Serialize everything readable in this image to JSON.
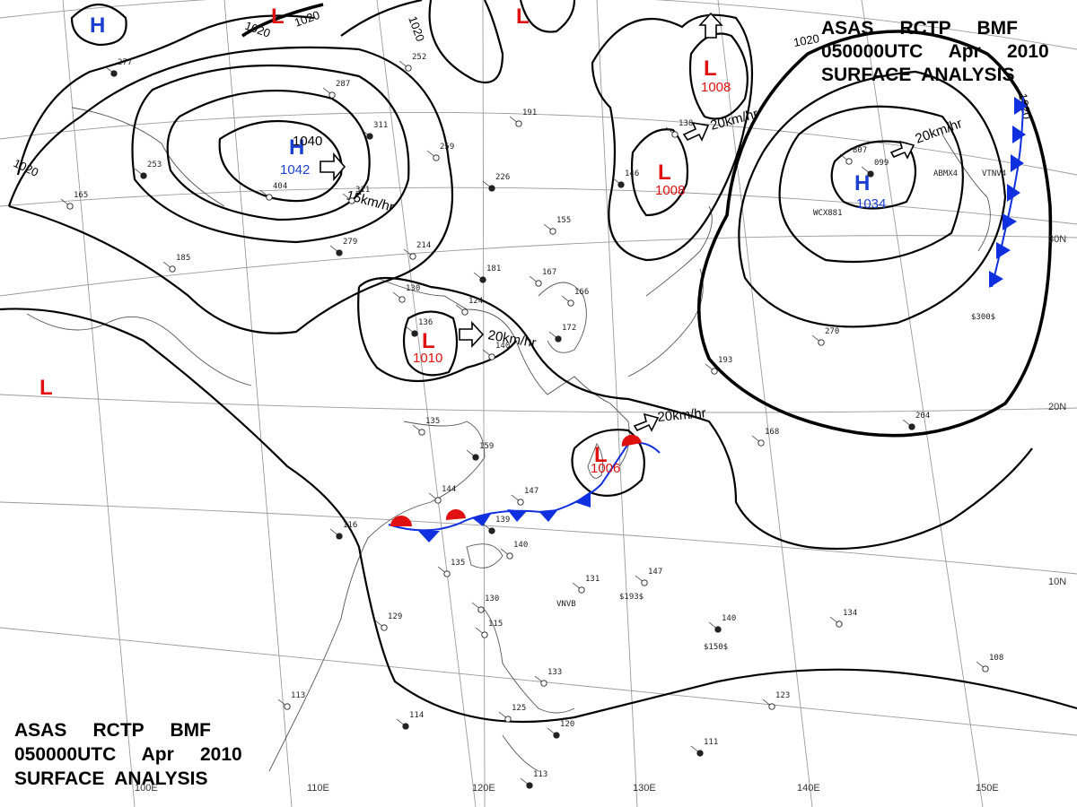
{
  "title_top": {
    "line1": "ASAS     RCTP     BMF",
    "line2": "050000UTC     Apr     2010",
    "line3": "SURFACE  ANALYSIS"
  },
  "title_bottom": {
    "line1": "ASAS     RCTP     BMF",
    "line2": "050000UTC     Apr     2010",
    "line3": "SURFACE  ANALYSIS"
  },
  "colors": {
    "high": "#1a3fd0",
    "low": "#e01010",
    "cold_front": "#1030e0",
    "warm_front": "#e01010"
  },
  "isobar_labels": [
    "1020",
    "1020",
    "1020",
    "1020",
    "1020",
    "1020"
  ],
  "longitude_labels": [
    "100E",
    "110E",
    "120E",
    "130E",
    "140E",
    "150E"
  ],
  "latitude_labels": [
    "30N",
    "20N",
    "10N"
  ],
  "pressure_centers": [
    {
      "type": "H",
      "value": "1042",
      "alt_value": "1040"
    },
    {
      "type": "H",
      "value": "1034"
    },
    {
      "type": "H",
      "value": ""
    },
    {
      "type": "L",
      "value": "1010"
    },
    {
      "type": "L",
      "value": "1008"
    },
    {
      "type": "L",
      "value": "1008"
    },
    {
      "type": "L",
      "value": "1006"
    },
    {
      "type": "L",
      "value": ""
    },
    {
      "type": "L",
      "value": ""
    },
    {
      "type": "L",
      "value": ""
    }
  ],
  "motion_labels": [
    "15km/hr",
    "20km/hr",
    "20km/hr",
    "20km/hr",
    "20km/hr"
  ],
  "station_plots": [
    "277",
    "287",
    "252",
    "311",
    "404",
    "311",
    "253",
    "165",
    "185",
    "279",
    "214",
    "259",
    "226",
    "191",
    "155",
    "181",
    "167",
    "130",
    "136",
    "124",
    "166",
    "172",
    "140",
    "135",
    "159",
    "144",
    "147",
    "139",
    "140",
    "135",
    "116",
    "129",
    "113",
    "114",
    "125",
    "133",
    "120",
    "130",
    "115",
    "113",
    "131",
    "147",
    "140",
    "134",
    "168",
    "204",
    "270",
    "193",
    "146",
    "138",
    "807",
    "099",
    "108",
    "123",
    "111"
  ],
  "station_ids": [
    "ABMX4",
    "WCX881",
    "VTNV4",
    "VNVB",
    "$193$",
    "$150$",
    "$300$"
  ]
}
